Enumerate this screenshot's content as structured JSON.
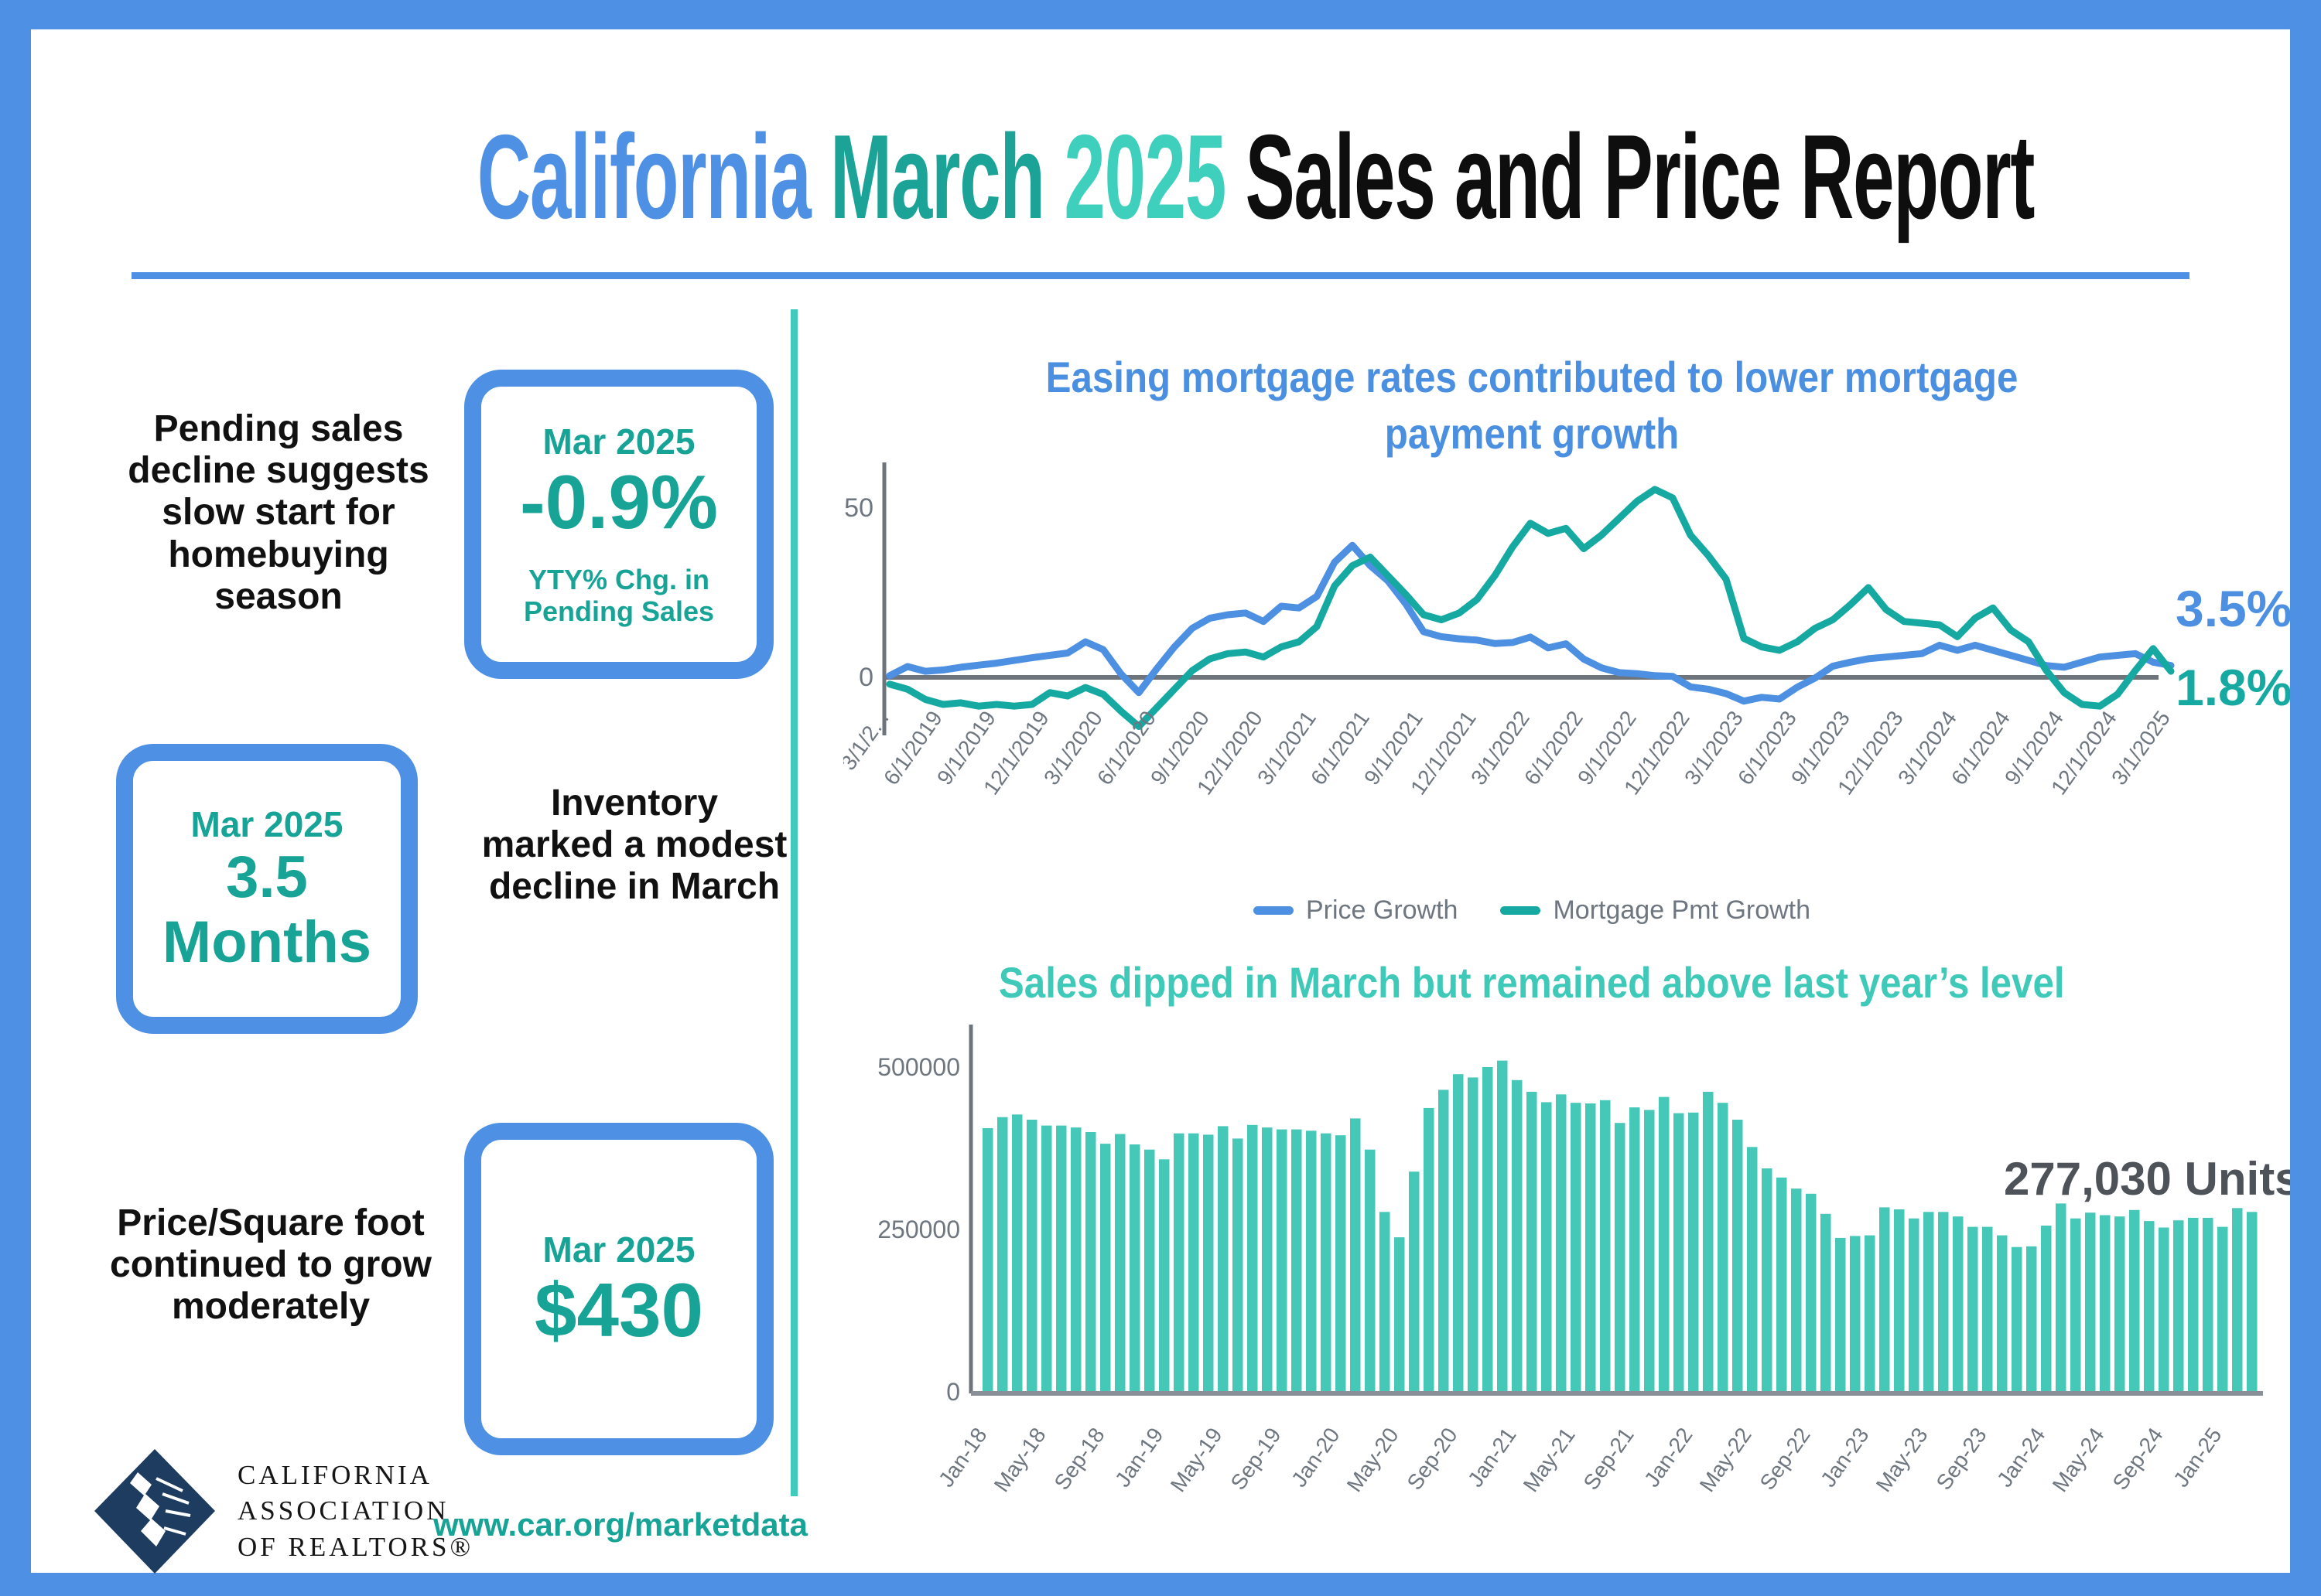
{
  "title": {
    "part1": "California",
    "part2": "March",
    "part3": "2025",
    "part4": "Sales and Price Report"
  },
  "colors": {
    "frame_blue": "#4e91e4",
    "title_blue": "#4a8fe0",
    "teal_dark": "#1aa396",
    "teal_light": "#3fd0bd",
    "card_text_teal": "#17a396",
    "divider_teal": "#3fcabb",
    "line_blue": "#4d90e2",
    "line_teal": "#15a9a2",
    "bar_teal": "#46c8b9",
    "axis_gray": "#6e7680",
    "annotation_gray": "#4d5359",
    "logo_navy": "#1e3c5f"
  },
  "left_panel": {
    "block1": {
      "text": "Pending sales decline suggests slow start for homebuying season",
      "card": {
        "period": "Mar 2025",
        "value": "-0.9%",
        "caption": "YTY% Chg. in Pending Sales"
      }
    },
    "block2": {
      "card": {
        "period": "Mar 2025",
        "value": "3.5 Months"
      },
      "text": "Inventory marked a modest decline in March"
    },
    "block3": {
      "text": "Price/Square foot continued to grow moderately",
      "card": {
        "period": "Mar 2025",
        "value": "$430"
      }
    },
    "logo": {
      "line1": "CALIFORNIA",
      "line2": "ASSOCIATION",
      "line3": "OF REALTORS®"
    },
    "website": "www.car.org/marketdata"
  },
  "chart_data": [
    {
      "type": "line",
      "title": "Easing mortgage rates contributed to lower mortgage payment growth",
      "x_start": "3/1/2019",
      "x_end": "3/1/2025",
      "interval": "monthly",
      "x_tick_labels": [
        "3/1/2...",
        "6/1/2019",
        "9/1/2019",
        "12/1/2019",
        "3/1/2020",
        "6/1/2020",
        "9/1/2020",
        "12/1/2020",
        "3/1/2021",
        "6/1/2021",
        "9/1/2021",
        "12/1/2021",
        "3/1/2022",
        "6/1/2022",
        "9/1/2022",
        "12/1/2022",
        "3/1/2023",
        "6/1/2023",
        "9/1/2023",
        "12/1/2023",
        "3/1/2024",
        "6/1/2024",
        "9/1/2024",
        "12/1/2024",
        "3/1/2025"
      ],
      "yticks": [
        0,
        50
      ],
      "ylim": [
        -20,
        60
      ],
      "grid": false,
      "legend_position": "bottom",
      "series": [
        {
          "name": "Price Growth",
          "color": "#4d90e2",
          "end_label": "3.5%",
          "values": [
            0.5,
            3.2,
            1.8,
            2.2,
            3.0,
            3.6,
            4.2,
            5.0,
            5.8,
            6.5,
            7.2,
            10.5,
            8.2,
            1.0,
            -4.5,
            2.5,
            9.0,
            14.5,
            17.5,
            18.5,
            19.0,
            16.5,
            21.0,
            20.5,
            23.9,
            34.0,
            39.0,
            33.0,
            28.5,
            21.7,
            13.5,
            12.0,
            11.4,
            11.0,
            10.0,
            10.3,
            11.9,
            8.7,
            9.9,
            5.4,
            2.8,
            1.4,
            1.1,
            0.5,
            0.3,
            -2.8,
            -3.5,
            -4.8,
            -7.0,
            -5.9,
            -6.4,
            -2.9,
            -0.2,
            3.3,
            4.5,
            5.5,
            6.0,
            6.5,
            7.0,
            9.5,
            8.0,
            9.5,
            8.0,
            6.5,
            5.0,
            3.5,
            3.0,
            4.5,
            6.0,
            6.5,
            7.0,
            4.5,
            3.5
          ]
        },
        {
          "name": "Mortgage Pmt Growth",
          "color": "#15a9a2",
          "end_label": "1.8%",
          "values": [
            -2.0,
            -3.5,
            -6.5,
            -8.0,
            -7.5,
            -8.5,
            -8.0,
            -8.5,
            -8.0,
            -4.5,
            -5.5,
            -3.0,
            -5.0,
            -10.0,
            -14.5,
            -9.0,
            -3.5,
            2.0,
            5.5,
            7.0,
            7.5,
            6.0,
            9.0,
            10.5,
            15.0,
            27.0,
            33.0,
            35.5,
            30.0,
            24.5,
            18.5,
            17.0,
            19.0,
            23.0,
            30.0,
            38.5,
            45.5,
            42.5,
            44.0,
            38.0,
            42.0,
            47.0,
            52.0,
            55.5,
            53.0,
            42.0,
            36.0,
            29.0,
            11.5,
            9.0,
            8.0,
            10.5,
            14.5,
            17.0,
            21.5,
            26.5,
            20.0,
            16.5,
            16.0,
            15.5,
            12.0,
            17.5,
            20.5,
            14.0,
            10.5,
            2.0,
            -4.5,
            -8.0,
            -8.5,
            -5.0,
            2.0,
            8.5,
            1.8
          ]
        }
      ]
    },
    {
      "type": "bar",
      "title": "Sales dipped in March but remained above last year’s level",
      "x_start": "Jan-18",
      "x_end": "Mar-25",
      "interval": "monthly",
      "x_tick_labels": [
        "Jan-18",
        "May-18",
        "Sep-18",
        "Jan-19",
        "May-19",
        "Sep-19",
        "Jan-20",
        "May-20",
        "Sep-20",
        "Jan-21",
        "May-21",
        "Sep-21",
        "Jan-22",
        "May-22",
        "Sep-22",
        "Jan-23",
        "May-23",
        "Sep-23",
        "Jan-24",
        "May-24",
        "Sep-24",
        "Jan-25"
      ],
      "yticks": [
        0,
        250000,
        500000
      ],
      "ylim": [
        0,
        530000
      ],
      "annotation": "277,030 Units",
      "bar_color": "#46c8b9",
      "values": [
        406000,
        423000,
        427000,
        419000,
        410000,
        410000,
        407000,
        400000,
        382000,
        397000,
        381000,
        373000,
        358000,
        398000,
        398000,
        396000,
        409000,
        390000,
        411000,
        407000,
        404000,
        404000,
        402000,
        398000,
        395000,
        421000,
        373000,
        277000,
        238000,
        339000,
        437000,
        465000,
        489000,
        484000,
        500000,
        510000,
        480000,
        462000,
        446000,
        458000,
        445000,
        444000,
        449000,
        414000,
        438000,
        434000,
        454000,
        429000,
        430000,
        462000,
        445000,
        419000,
        377000,
        344000,
        330000,
        313000,
        305000,
        274000,
        237000,
        240000,
        241000,
        284000,
        281000,
        267000,
        277000,
        277000,
        270000,
        254000,
        254000,
        241000,
        223000,
        224000,
        256000,
        290000,
        267000,
        276000,
        272000,
        270000,
        280000,
        263000,
        253000,
        264000,
        268000,
        268000,
        254000,
        283000,
        277030
      ]
    }
  ]
}
